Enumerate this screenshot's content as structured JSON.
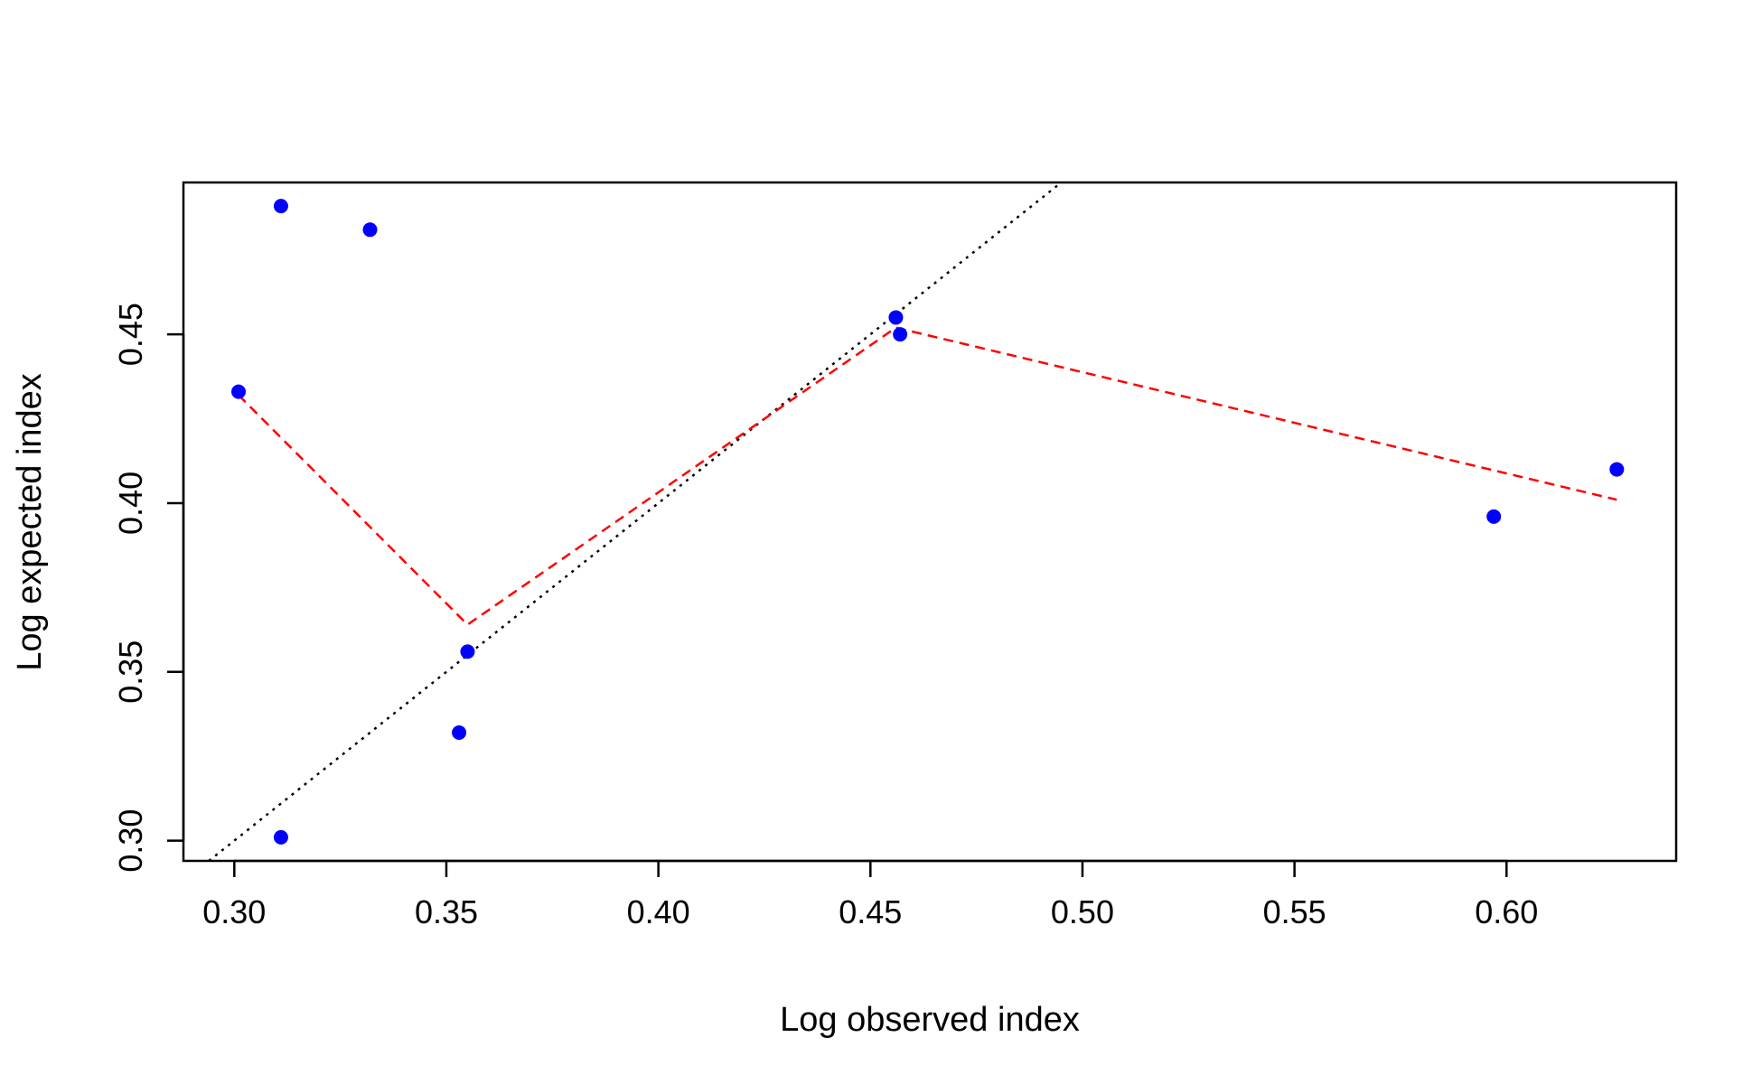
{
  "chart_data": {
    "type": "scatter",
    "xlabel": "Log observed index",
    "ylabel": "Log expected index",
    "xlim": [
      0.288,
      0.64
    ],
    "ylim": [
      0.294,
      0.495
    ],
    "x_ticks": [
      0.3,
      0.35,
      0.4,
      0.45,
      0.5,
      0.55,
      0.6
    ],
    "x_tick_labels": [
      "0.30",
      "0.35",
      "0.40",
      "0.45",
      "0.50",
      "0.55",
      "0.60"
    ],
    "y_ticks": [
      0.3,
      0.35,
      0.4,
      0.45
    ],
    "y_tick_labels": [
      "0.30",
      "0.35",
      "0.40",
      "0.45"
    ],
    "grid": false,
    "points": [
      {
        "x": 0.301,
        "y": 0.433
      },
      {
        "x": 0.311,
        "y": 0.488
      },
      {
        "x": 0.311,
        "y": 0.301
      },
      {
        "x": 0.332,
        "y": 0.481
      },
      {
        "x": 0.353,
        "y": 0.332
      },
      {
        "x": 0.355,
        "y": 0.356
      },
      {
        "x": 0.456,
        "y": 0.455
      },
      {
        "x": 0.457,
        "y": 0.45
      },
      {
        "x": 0.597,
        "y": 0.396
      },
      {
        "x": 0.626,
        "y": 0.41
      }
    ],
    "fit_line": [
      {
        "x": 0.301,
        "y": 0.432
      },
      {
        "x": 0.355,
        "y": 0.364
      },
      {
        "x": 0.456,
        "y": 0.452
      },
      {
        "x": 0.626,
        "y": 0.401
      }
    ],
    "reference_line": {
      "type": "identity",
      "slope": 1,
      "intercept": 0
    },
    "colors": {
      "points": "#0000ff",
      "fit_line": "#ff0000",
      "reference_line": "#000000",
      "axis": "#000000"
    }
  }
}
